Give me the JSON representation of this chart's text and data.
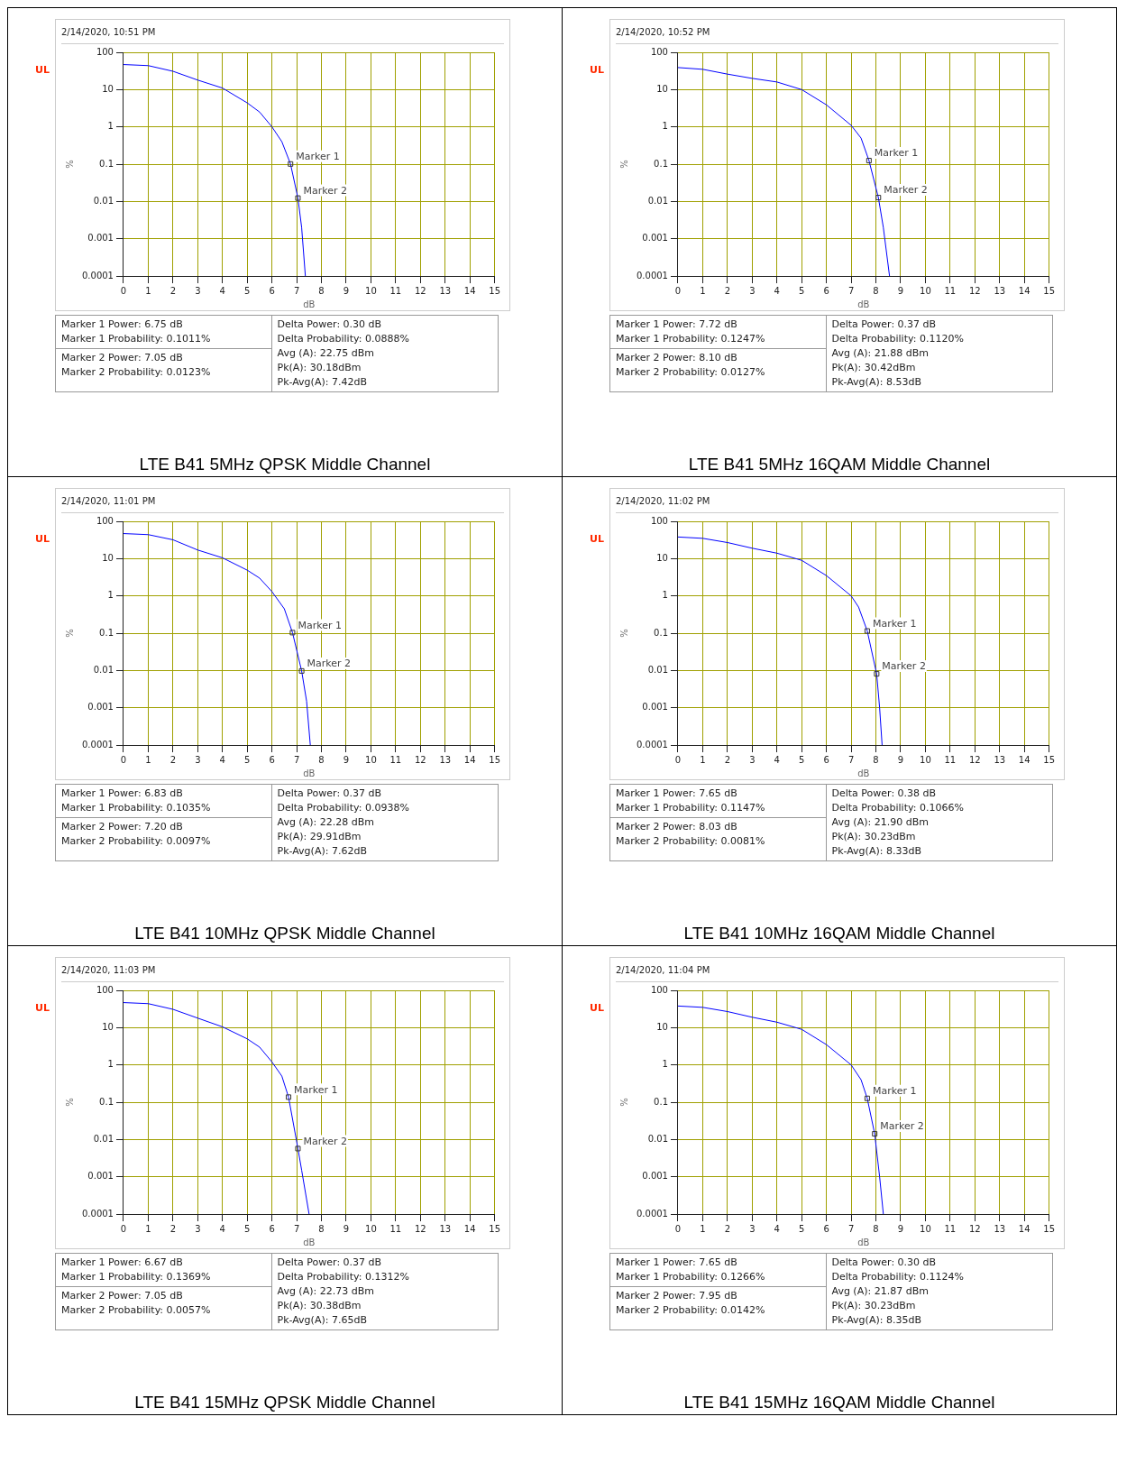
{
  "chart_data": [
    {
      "type": "line",
      "title": "LTE B41 5MHz QPSK Middle Channel",
      "subtitle": "2/14/2020, 10:51 PM",
      "xlabel": "dB",
      "ylabel": "%",
      "color": "#0000ff",
      "line_style": "solid",
      "grid": true,
      "log": "y",
      "xlim": [
        0,
        15
      ],
      "xticks": [
        0,
        1,
        2,
        3,
        4,
        5,
        6,
        7,
        8,
        9,
        10,
        11,
        12,
        13,
        14,
        15
      ],
      "ylim": [
        0.0001,
        100
      ],
      "yticks": [
        0.0001,
        0.001,
        0.01,
        0.1,
        1,
        10,
        100
      ],
      "x": [
        0,
        1,
        2,
        3,
        4,
        5,
        5.5,
        6,
        6.4,
        6.75,
        7.05,
        7.2,
        7.35
      ],
      "values": [
        47,
        44,
        31,
        18,
        11,
        4.4,
        2.5,
        1,
        0.4,
        0.1011,
        0.0123,
        0.002,
        0.0001
      ],
      "annotations": [
        "UL",
        "Marker 1 Power: 6.75 dB",
        "Marker 1 Probability: 0.1011%",
        "Marker 2 Power: 7.05 dB",
        "Marker 2 Probability: 0.0123%",
        "Delta Power: 0.30 dB",
        "Delta Probability: 0.0888%",
        "Avg (A): 22.75 dBm",
        "Pk(A): 30.18dBm",
        "Pk-Avg(A): 7.42dB",
        {
          "text": "Marker 1",
          "x": 6.75,
          "y": 0.1011
        },
        {
          "text": "Marker 2",
          "x": 7.05,
          "y": 0.0123
        }
      ]
    },
    {
      "type": "line",
      "title": "LTE B41 5MHz 16QAM Middle Channel",
      "subtitle": "2/14/2020, 10:52 PM",
      "xlabel": "dB",
      "ylabel": "%",
      "color": "#0000ff",
      "line_style": "solid",
      "grid": true,
      "log": "y",
      "xlim": [
        0,
        15
      ],
      "xticks": [
        0,
        1,
        2,
        3,
        4,
        5,
        6,
        7,
        8,
        9,
        10,
        11,
        12,
        13,
        14,
        15
      ],
      "ylim": [
        0.0001,
        100
      ],
      "yticks": [
        0.0001,
        0.001,
        0.01,
        0.1,
        1,
        10,
        100
      ],
      "x": [
        0,
        1,
        2,
        3,
        4,
        5,
        6,
        7,
        7.4,
        7.72,
        8.1,
        8.3,
        8.55
      ],
      "values": [
        39,
        35,
        26,
        20,
        16,
        10,
        3.9,
        1.1,
        0.5,
        0.1247,
        0.0127,
        0.002,
        0.0001
      ],
      "annotations": [
        "UL",
        "Marker 1 Power: 7.72 dB",
        "Marker 1 Probability: 0.1247%",
        "Marker 2 Power: 8.10 dB",
        "Marker 2 Probability: 0.0127%",
        "Delta Power: 0.37 dB",
        "Delta Probability: 0.1120%",
        "Avg (A): 21.88 dBm",
        "Pk(A): 30.42dBm",
        "Pk-Avg(A): 8.53dB",
        {
          "text": "Marker 1",
          "x": 7.72,
          "y": 0.1247
        },
        {
          "text": "Marker 2",
          "x": 8.1,
          "y": 0.0127
        }
      ]
    },
    {
      "type": "line",
      "title": "LTE B41 10MHz QPSK Middle Channel",
      "subtitle": "2/14/2020, 11:01 PM",
      "xlabel": "dB",
      "ylabel": "%",
      "color": "#0000ff",
      "line_style": "solid",
      "grid": true,
      "log": "y",
      "xlim": [
        0,
        15
      ],
      "xticks": [
        0,
        1,
        2,
        3,
        4,
        5,
        6,
        7,
        8,
        9,
        10,
        11,
        12,
        13,
        14,
        15
      ],
      "ylim": [
        0.0001,
        100
      ],
      "yticks": [
        0.0001,
        0.001,
        0.01,
        0.1,
        1,
        10,
        100
      ],
      "x": [
        0,
        1,
        2,
        3,
        4,
        5,
        5.5,
        6,
        6.5,
        6.83,
        7.2,
        7.4,
        7.55
      ],
      "values": [
        47,
        44,
        32,
        17,
        10.5,
        4.9,
        3,
        1.3,
        0.45,
        0.1035,
        0.0097,
        0.0015,
        0.0001
      ],
      "annotations": [
        "UL",
        "Marker 1 Power: 6.83 dB",
        "Marker 1 Probability: 0.1035%",
        "Marker 2 Power: 7.20 dB",
        "Marker 2 Probability: 0.0097%",
        "Delta Power: 0.37 dB",
        "Delta Probability: 0.0938%",
        "Avg (A): 22.28 dBm",
        "Pk(A): 29.91dBm",
        "Pk-Avg(A): 7.62dB",
        {
          "text": "Marker 1",
          "x": 6.83,
          "y": 0.1035
        },
        {
          "text": "Marker 2",
          "x": 7.2,
          "y": 0.0097
        }
      ]
    },
    {
      "type": "line",
      "title": "LTE B41 10MHz 16QAM Middle Channel",
      "subtitle": "2/14/2020, 11:02 PM",
      "xlabel": "dB",
      "ylabel": "%",
      "color": "#0000ff",
      "line_style": "solid",
      "grid": true,
      "log": "y",
      "xlim": [
        0,
        15
      ],
      "xticks": [
        0,
        1,
        2,
        3,
        4,
        5,
        6,
        7,
        8,
        9,
        10,
        11,
        12,
        13,
        14,
        15
      ],
      "ylim": [
        0.0001,
        100
      ],
      "yticks": [
        0.0001,
        0.001,
        0.01,
        0.1,
        1,
        10,
        100
      ],
      "x": [
        0,
        1,
        2,
        3,
        4,
        5,
        6,
        7,
        7.3,
        7.65,
        8.03,
        8.15,
        8.25
      ],
      "values": [
        38,
        35,
        27,
        19,
        14,
        9,
        3.5,
        1,
        0.5,
        0.1147,
        0.0081,
        0.001,
        0.0001
      ],
      "annotations": [
        "UL",
        "Marker 1 Power: 7.65 dB",
        "Marker 1 Probability: 0.1147%",
        "Marker 2 Power: 8.03 dB",
        "Marker 2 Probability: 0.0081%",
        "Delta Power: 0.38 dB",
        "Delta Probability: 0.1066%",
        "Avg (A): 21.90 dBm",
        "Pk(A): 30.23dBm",
        "Pk-Avg(A): 8.33dB",
        {
          "text": "Marker 1",
          "x": 7.65,
          "y": 0.1147
        },
        {
          "text": "Marker 2",
          "x": 8.03,
          "y": 0.0081
        }
      ]
    },
    {
      "type": "line",
      "title": "LTE B41 15MHz QPSK Middle Channel",
      "subtitle": "2/14/2020, 11:03 PM",
      "xlabel": "dB",
      "ylabel": "%",
      "color": "#0000ff",
      "line_style": "solid",
      "grid": true,
      "log": "y",
      "xlim": [
        0,
        15
      ],
      "xticks": [
        0,
        1,
        2,
        3,
        4,
        5,
        6,
        7,
        8,
        9,
        10,
        11,
        12,
        13,
        14,
        15
      ],
      "ylim": [
        0.0001,
        100
      ],
      "yticks": [
        0.0001,
        0.001,
        0.01,
        0.1,
        1,
        10,
        100
      ],
      "x": [
        0,
        1,
        2,
        3,
        4,
        5,
        5.5,
        6,
        6.4,
        6.67,
        7.05,
        7.2,
        7.5
      ],
      "values": [
        47,
        44,
        31,
        18,
        10.5,
        5,
        3,
        1.2,
        0.5,
        0.1369,
        0.0057,
        0.0015,
        0.0001
      ],
      "annotations": [
        "UL",
        "Marker 1 Power: 6.67 dB",
        "Marker 1 Probability: 0.1369%",
        "Marker 2 Power: 7.05 dB",
        "Marker 2 Probability: 0.0057%",
        "Delta Power: 0.37 dB",
        "Delta Probability: 0.1312%",
        "Avg (A): 22.73 dBm",
        "Pk(A): 30.38dBm",
        "Pk-Avg(A): 7.65dB",
        {
          "text": "Marker 1",
          "x": 6.67,
          "y": 0.1369
        },
        {
          "text": "Marker 2",
          "x": 7.05,
          "y": 0.0057
        }
      ]
    },
    {
      "type": "line",
      "title": "LTE B41 15MHz 16QAM Middle Channel",
      "subtitle": "2/14/2020, 11:04 PM",
      "xlabel": "dB",
      "ylabel": "%",
      "color": "#0000ff",
      "line_style": "solid",
      "grid": true,
      "log": "y",
      "xlim": [
        0,
        15
      ],
      "xticks": [
        0,
        1,
        2,
        3,
        4,
        5,
        6,
        7,
        8,
        9,
        10,
        11,
        12,
        13,
        14,
        15
      ],
      "ylim": [
        0.0001,
        100
      ],
      "yticks": [
        0.0001,
        0.001,
        0.01,
        0.1,
        1,
        10,
        100
      ],
      "x": [
        0,
        1,
        2,
        3,
        4,
        5,
        6,
        7,
        7.4,
        7.65,
        7.95,
        8.15,
        8.3
      ],
      "values": [
        38,
        35,
        27,
        19,
        14,
        9,
        3.5,
        1,
        0.4,
        0.1266,
        0.0142,
        0.001,
        0.0001
      ],
      "annotations": [
        "UL",
        "Marker 1 Power: 7.65 dB",
        "Marker 1 Probability: 0.1266%",
        "Marker 2 Power: 7.95 dB",
        "Marker 2 Probability: 0.0142%",
        "Delta Power: 0.30 dB",
        "Delta Probability: 0.1124%",
        "Avg (A): 21.87 dBm",
        "Pk(A): 30.23dBm",
        "Pk-Avg(A): 8.35dB",
        {
          "text": "Marker 1",
          "x": 7.65,
          "y": 0.1266
        },
        {
          "text": "Marker 2",
          "x": 7.95,
          "y": 0.0142
        }
      ]
    }
  ]
}
